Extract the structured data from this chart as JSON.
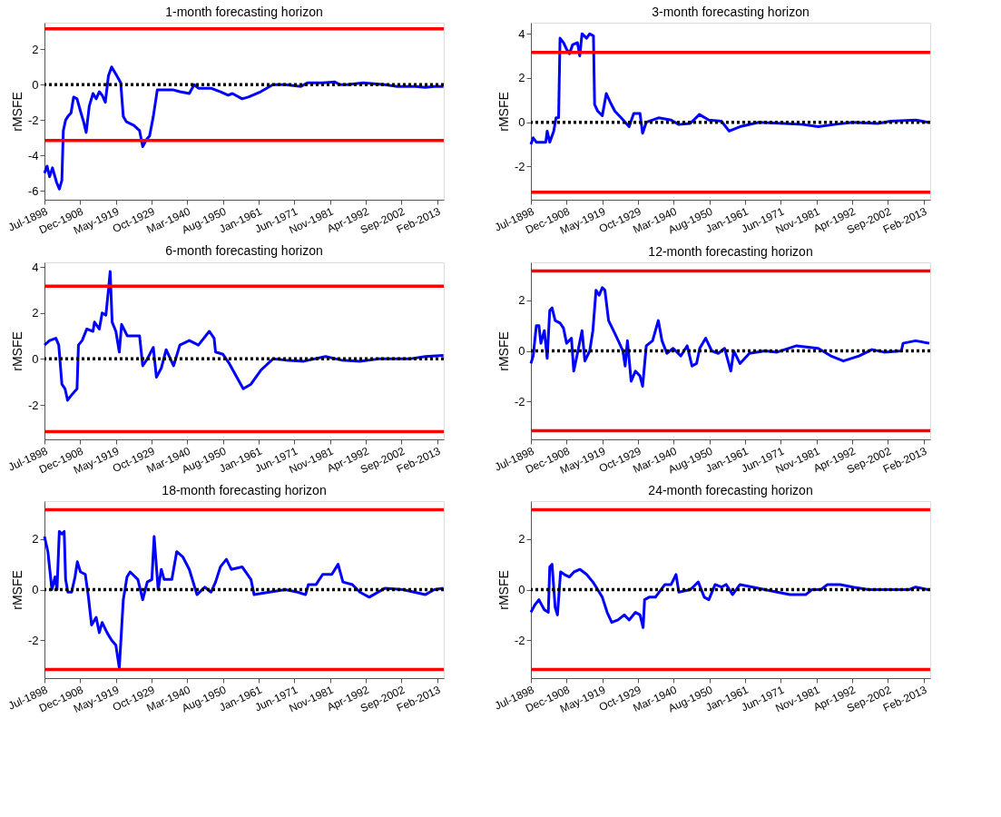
{
  "chart_data": [
    {
      "type": "line",
      "title": "1-month forecasting horizon",
      "ylabel": "rMSFE",
      "grid": false,
      "ylim": [
        -6.5,
        3.5
      ],
      "yticks": [
        -6,
        -4,
        -2,
        0,
        2
      ],
      "xlim": [
        "1898-07",
        "2015-01"
      ],
      "xticks": [
        {
          "value": "1898-07",
          "label": "Jul-1898"
        },
        {
          "value": "1908-12",
          "label": "Dec-1908"
        },
        {
          "value": "1919-05",
          "label": "May-1919"
        },
        {
          "value": "1929-10",
          "label": "Oct-1929"
        },
        {
          "value": "1940-03",
          "label": "Mar-1940"
        },
        {
          "value": "1950-08",
          "label": "Aug-1950"
        },
        {
          "value": "1961-01",
          "label": "Jan-1961"
        },
        {
          "value": "1971-06",
          "label": "Jun-1971"
        },
        {
          "value": "1981-11",
          "label": "Nov-1981"
        },
        {
          "value": "1992-04",
          "label": "Apr-1992"
        },
        {
          "value": "2002-09",
          "label": "Sep-2002"
        },
        {
          "value": "2013-02",
          "label": "Feb-2013"
        }
      ],
      "ref_lines": [
        {
          "axis": "y",
          "value": 3.16,
          "color": "#ff0000",
          "line_style": "solid"
        },
        {
          "axis": "y",
          "value": -3.16,
          "color": "#ff0000",
          "line_style": "solid"
        },
        {
          "axis": "y",
          "value": 0,
          "color": "#000000",
          "line_style": "dotted"
        }
      ],
      "x": [
        "1898-07",
        "1899-04",
        "1900-01",
        "1900-11",
        "1902-01",
        "1902-11",
        "1903-08",
        "1904-01",
        "1904-09",
        "1905-05",
        "1906-04",
        "1907-01",
        "1908-01",
        "1909-01",
        "1909-12",
        "1910-09",
        "1911-08",
        "1912-09",
        "1913-08",
        "1914-07",
        "1915-05",
        "1916-04",
        "1917-03",
        "1918-02",
        "1919-01",
        "1919-12",
        "1920-10",
        "1921-07",
        "1922-06",
        "1923-07",
        "1924-08",
        "1926-04",
        "1927-03",
        "1928-04",
        "1929-03",
        "1930-04",
        "1931-06",
        "1933-06",
        "1936-03",
        "1938-01",
        "1940-10",
        "1942-03",
        "1943-06",
        "1947-02",
        "1949-11",
        "1952-02",
        "1953-05",
        "1956-03",
        "1958-01",
        "1961-08",
        "1965-03",
        "1968-10",
        "1973-05",
        "1975-03",
        "1979-09",
        "1983-04",
        "1984-09",
        "1986-12",
        "1991-07",
        "1997-10",
        "2001-06",
        "2006-11",
        "2009-08",
        "2012-04",
        "2014-12"
      ],
      "series": [
        {
          "color": "#0000ff",
          "values": [
            -5.0,
            -4.6,
            -5.2,
            -4.7,
            -5.5,
            -5.9,
            -5.4,
            -2.6,
            -2.0,
            -1.8,
            -1.6,
            -0.7,
            -0.8,
            -1.5,
            -2.1,
            -2.7,
            -1.2,
            -0.5,
            -0.8,
            -0.4,
            -0.6,
            -1.0,
            0.5,
            1.0,
            0.7,
            0.4,
            0.1,
            -1.8,
            -2.1,
            -2.2,
            -2.3,
            -2.6,
            -3.5,
            -3.1,
            -2.9,
            -1.8,
            -0.3,
            -0.3,
            -0.3,
            -0.4,
            -0.5,
            0.0,
            -0.2,
            -0.2,
            -0.4,
            -0.6,
            -0.5,
            -0.8,
            -0.7,
            -0.4,
            0.0,
            0.0,
            -0.1,
            0.1,
            0.1,
            0.15,
            0.0,
            0.0,
            0.1,
            0.0,
            -0.1,
            -0.1,
            -0.15,
            -0.1,
            -0.1
          ]
        }
      ]
    },
    {
      "type": "line",
      "title": "3-month forecasting horizon",
      "ylabel": "rMSFE",
      "grid": false,
      "ylim": [
        -3.5,
        4.5
      ],
      "yticks": [
        -2,
        0,
        2,
        4
      ],
      "xlim": [
        "1898-07",
        "2015-01"
      ],
      "xticks": [
        {
          "value": "1898-07",
          "label": "Jul-1898"
        },
        {
          "value": "1908-12",
          "label": "Dec-1908"
        },
        {
          "value": "1919-05",
          "label": "May-1919"
        },
        {
          "value": "1929-10",
          "label": "Oct-1929"
        },
        {
          "value": "1940-03",
          "label": "Mar-1940"
        },
        {
          "value": "1950-08",
          "label": "Aug-1950"
        },
        {
          "value": "1961-01",
          "label": "Jan-1961"
        },
        {
          "value": "1971-06",
          "label": "Jun-1971"
        },
        {
          "value": "1981-11",
          "label": "Nov-1981"
        },
        {
          "value": "1992-04",
          "label": "Apr-1992"
        },
        {
          "value": "2002-09",
          "label": "Sep-2002"
        },
        {
          "value": "2013-02",
          "label": "Feb-2013"
        }
      ],
      "ref_lines": [
        {
          "axis": "y",
          "value": 3.16,
          "color": "#ff0000",
          "line_style": "solid"
        },
        {
          "axis": "y",
          "value": -3.16,
          "color": "#ff0000",
          "line_style": "solid"
        },
        {
          "axis": "y",
          "value": 0,
          "color": "#000000",
          "line_style": "dotted"
        }
      ],
      "x": [
        "1898-07",
        "1899-03",
        "1900-02",
        "1902-11",
        "1903-04",
        "1904-01",
        "1905-03",
        "1905-11",
        "1906-08",
        "1907-01",
        "1908-01",
        "1908-12",
        "1909-10",
        "1910-09",
        "1912-02",
        "1912-10",
        "1913-06",
        "1914-10",
        "1915-09",
        "1916-10",
        "1917-02",
        "1918-01",
        "1919-05",
        "1920-07",
        "1921-09",
        "1923-01",
        "1924-11",
        "1927-03",
        "1928-07",
        "1930-05",
        "1931-02",
        "1932-03",
        "1935-10",
        "1939-06",
        "1941-09",
        "1945-01",
        "1947-09",
        "1950-06",
        "1954-02",
        "1956-05",
        "1959-07",
        "1965-01",
        "1972-05",
        "1977-11",
        "1982-05",
        "1987-01",
        "1992-06",
        "1999-10",
        "2003-06",
        "2010-10",
        "2014-05"
      ],
      "series": [
        {
          "color": "#0000ff",
          "values": [
            -1.0,
            -0.7,
            -0.9,
            -0.9,
            -0.4,
            -0.9,
            -0.4,
            0.2,
            0.2,
            3.8,
            3.6,
            3.3,
            3.1,
            3.5,
            3.6,
            3.0,
            4.0,
            3.8,
            4.0,
            3.9,
            0.8,
            0.5,
            0.3,
            1.3,
            0.9,
            0.5,
            0.2,
            -0.2,
            0.4,
            0.4,
            -0.5,
            0.0,
            0.2,
            0.1,
            -0.1,
            -0.05,
            0.35,
            0.1,
            0.05,
            -0.4,
            -0.2,
            0.0,
            -0.05,
            -0.1,
            -0.2,
            -0.1,
            0.0,
            -0.05,
            0.05,
            0.1,
            0.0
          ]
        }
      ]
    },
    {
      "type": "line",
      "title": "6-month forecasting horizon",
      "ylabel": "rMSFE",
      "grid": false,
      "ylim": [
        -3.5,
        4.2
      ],
      "yticks": [
        -2,
        0,
        2,
        4
      ],
      "xlim": [
        "1898-07",
        "2015-01"
      ],
      "xticks": [
        {
          "value": "1898-07",
          "label": "Jul-1898"
        },
        {
          "value": "1908-12",
          "label": "Dec-1908"
        },
        {
          "value": "1919-05",
          "label": "May-1919"
        },
        {
          "value": "1929-10",
          "label": "Oct-1929"
        },
        {
          "value": "1940-03",
          "label": "Mar-1940"
        },
        {
          "value": "1950-08",
          "label": "Aug-1950"
        },
        {
          "value": "1961-01",
          "label": "Jan-1961"
        },
        {
          "value": "1971-06",
          "label": "Jun-1971"
        },
        {
          "value": "1981-11",
          "label": "Nov-1981"
        },
        {
          "value": "1992-04",
          "label": "Apr-1992"
        },
        {
          "value": "2002-09",
          "label": "Sep-2002"
        },
        {
          "value": "2013-02",
          "label": "Feb-2013"
        }
      ],
      "ref_lines": [
        {
          "axis": "y",
          "value": 3.16,
          "color": "#ff0000",
          "line_style": "solid"
        },
        {
          "axis": "y",
          "value": -3.16,
          "color": "#ff0000",
          "line_style": "solid"
        },
        {
          "axis": "y",
          "value": 0,
          "color": "#000000",
          "line_style": "dotted"
        }
      ],
      "x": [
        "1898-07",
        "1900-01",
        "1901-11",
        "1902-09",
        "1903-08",
        "1904-07",
        "1905-04",
        "1906-04",
        "1908-01",
        "1908-06",
        "1909-07",
        "1910-11",
        "1912-09",
        "1913-02",
        "1914-07",
        "1915-05",
        "1916-06",
        "1917-03",
        "1917-09",
        "1918-04",
        "1919-05",
        "1920-05",
        "1921-01",
        "1922-09",
        "1924-06",
        "1926-04",
        "1927-03",
        "1928-07",
        "1930-04",
        "1931-03",
        "1932-08",
        "1934-01",
        "1936-03",
        "1938-01",
        "1940-10",
        "1943-06",
        "1946-08",
        "1948-01",
        "1948-06",
        "1950-08",
        "1952-06",
        "1954-04",
        "1956-07",
        "1958-10",
        "1961-08",
        "1965-03",
        "1968-10",
        "1974-03",
        "1980-07",
        "1985-02",
        "1990-07",
        "1996-01",
        "2005-01",
        "2009-08",
        "2014-12"
      ],
      "series": [
        {
          "color": "#0000ff",
          "values": [
            0.6,
            0.8,
            0.9,
            0.6,
            -1.1,
            -1.3,
            -1.8,
            -1.6,
            -1.3,
            0.6,
            0.8,
            1.3,
            1.2,
            1.6,
            1.3,
            2.0,
            1.9,
            3.0,
            3.8,
            1.6,
            1.2,
            0.3,
            1.5,
            1.0,
            1.0,
            1.0,
            -0.3,
            0.0,
            0.5,
            -0.8,
            -0.4,
            0.4,
            -0.3,
            0.6,
            0.8,
            0.6,
            1.2,
            0.9,
            0.3,
            0.2,
            -0.2,
            -0.7,
            -1.3,
            -1.1,
            -0.5,
            0.0,
            -0.05,
            -0.1,
            0.1,
            -0.05,
            -0.1,
            0.0,
            0.0,
            0.1,
            0.15
          ]
        }
      ]
    },
    {
      "type": "line",
      "title": "12-month forecasting horizon",
      "ylabel": "rMSFE",
      "grid": false,
      "ylim": [
        -3.5,
        3.5
      ],
      "yticks": [
        -2,
        0,
        2
      ],
      "xlim": [
        "1898-07",
        "2015-01"
      ],
      "xticks": [
        {
          "value": "1898-07",
          "label": "Jul-1898"
        },
        {
          "value": "1908-12",
          "label": "Dec-1908"
        },
        {
          "value": "1919-05",
          "label": "May-1919"
        },
        {
          "value": "1929-10",
          "label": "Oct-1929"
        },
        {
          "value": "1940-03",
          "label": "Mar-1940"
        },
        {
          "value": "1950-08",
          "label": "Aug-1950"
        },
        {
          "value": "1961-01",
          "label": "Jan-1961"
        },
        {
          "value": "1971-06",
          "label": "Jun-1971"
        },
        {
          "value": "1981-11",
          "label": "Nov-1981"
        },
        {
          "value": "1992-04",
          "label": "Apr-1992"
        },
        {
          "value": "2002-09",
          "label": "Sep-2002"
        },
        {
          "value": "2013-02",
          "label": "Feb-2013"
        }
      ],
      "ref_lines": [
        {
          "axis": "y",
          "value": 3.16,
          "color": "#ff0000",
          "line_style": "solid"
        },
        {
          "axis": "y",
          "value": -3.16,
          "color": "#ff0000",
          "line_style": "solid"
        },
        {
          "axis": "y",
          "value": 0,
          "color": "#000000",
          "line_style": "dotted"
        }
      ],
      "x": [
        "1898-07",
        "1899-03",
        "1900-02",
        "1900-11",
        "1901-06",
        "1902-06",
        "1903-04",
        "1904-01",
        "1904-09",
        "1905-08",
        "1907-01",
        "1908-01",
        "1908-12",
        "1910-05",
        "1911-01",
        "1912-02",
        "1913-06",
        "1914-04",
        "1915-09",
        "1916-08",
        "1917-07",
        "1918-06",
        "1919-05",
        "1920-02",
        "1921-03",
        "1922-08",
        "1924-01",
        "1925-05",
        "1926-01",
        "1926-09",
        "1927-10",
        "1929-01",
        "1930-05",
        "1931-02",
        "1932-03",
        "1934-01",
        "1935-09",
        "1936-10",
        "1938-03",
        "1940-01",
        "1942-04",
        "1944-02",
        "1945-07",
        "1946-11",
        "1947-10",
        "1949-07",
        "1951-04",
        "1953-03",
        "1955-01",
        "1956-11",
        "1957-09",
        "1959-07",
        "1962-04",
        "1966-10",
        "1970-05",
        "1976-01",
        "1982-05",
        "1986-01",
        "1989-09",
        "1994-04",
        "1998-01",
        "2001-08",
        "2006-08",
        "2007-02",
        "2010-10",
        "2014-10"
      ],
      "series": [
        {
          "color": "#0000ff",
          "values": [
            -0.5,
            -0.2,
            1.0,
            1.0,
            0.3,
            0.8,
            -0.3,
            1.6,
            1.7,
            1.2,
            1.1,
            0.9,
            0.3,
            0.5,
            -0.8,
            -0.1,
            0.8,
            -0.4,
            0.0,
            0.8,
            2.4,
            2.2,
            2.5,
            2.4,
            1.2,
            0.8,
            0.4,
            0.0,
            -0.6,
            0.4,
            -1.2,
            -0.8,
            -1.0,
            -1.4,
            0.2,
            0.4,
            1.2,
            0.4,
            -0.1,
            0.1,
            -0.2,
            0.2,
            -0.6,
            -0.5,
            0.1,
            0.5,
            0.0,
            -0.1,
            0.1,
            -0.8,
            0.0,
            -0.5,
            -0.1,
            0.0,
            -0.05,
            0.2,
            0.1,
            -0.2,
            -0.4,
            -0.2,
            0.05,
            -0.05,
            0.0,
            0.3,
            0.4,
            0.3
          ]
        }
      ]
    },
    {
      "type": "line",
      "title": "18-month forecasting horizon",
      "ylabel": "rMSFE",
      "grid": false,
      "ylim": [
        -3.5,
        3.5
      ],
      "yticks": [
        -2,
        0,
        2
      ],
      "xlim": [
        "1898-07",
        "2015-01"
      ],
      "xticks": [
        {
          "value": "1898-07",
          "label": "Jul-1898"
        },
        {
          "value": "1908-12",
          "label": "Dec-1908"
        },
        {
          "value": "1919-05",
          "label": "May-1919"
        },
        {
          "value": "1929-10",
          "label": "Oct-1929"
        },
        {
          "value": "1940-03",
          "label": "Mar-1940"
        },
        {
          "value": "1950-08",
          "label": "Aug-1950"
        },
        {
          "value": "1961-01",
          "label": "Jan-1961"
        },
        {
          "value": "1971-06",
          "label": "Jun-1971"
        },
        {
          "value": "1981-11",
          "label": "Nov-1981"
        },
        {
          "value": "1992-04",
          "label": "Apr-1992"
        },
        {
          "value": "2002-09",
          "label": "Sep-2002"
        },
        {
          "value": "2013-02",
          "label": "Feb-2013"
        }
      ],
      "ref_lines": [
        {
          "axis": "y",
          "value": 3.16,
          "color": "#ff0000",
          "line_style": "solid"
        },
        {
          "axis": "y",
          "value": -3.16,
          "color": "#ff0000",
          "line_style": "solid"
        },
        {
          "axis": "y",
          "value": 0,
          "color": "#000000",
          "line_style": "dotted"
        }
      ],
      "x": [
        "1898-07",
        "1899-07",
        "1900-09",
        "1901-08",
        "1902-03",
        "1902-11",
        "1903-08",
        "1904-04",
        "1904-09",
        "1905-05",
        "1906-06",
        "1907-06",
        "1908-02",
        "1909-01",
        "1910-06",
        "1911-05",
        "1912-04",
        "1913-08",
        "1914-07",
        "1915-05",
        "1916-10",
        "1918-02",
        "1919-05",
        "1920-05",
        "1921-07",
        "1922-08",
        "1923-07",
        "1925-10",
        "1927-03",
        "1928-07",
        "1929-11",
        "1930-07",
        "1931-09",
        "1932-08",
        "1933-06",
        "1935-09",
        "1937-02",
        "1938-11",
        "1940-10",
        "1943-01",
        "1945-04",
        "1947-02",
        "1948-06",
        "1949-11",
        "1951-08",
        "1953-01",
        "1956-03",
        "1958-10",
        "1959-09",
        "1964-03",
        "1968-10",
        "1972-05",
        "1974-09",
        "1975-07",
        "1977-10",
        "1979-09",
        "1982-05",
        "1984-03",
        "1985-08",
        "1988-05",
        "1990-07",
        "1993-04",
        "1997-10",
        "2003-02",
        "2009-08",
        "2012-04",
        "2014-12"
      ],
      "series": [
        {
          "color": "#0000ff",
          "values": [
            2.1,
            1.5,
            0.0,
            0.5,
            0.0,
            2.3,
            2.2,
            2.3,
            0.4,
            -0.1,
            -0.1,
            0.5,
            1.1,
            0.7,
            0.6,
            -0.3,
            -1.4,
            -1.1,
            -1.7,
            -1.3,
            -1.7,
            -2.0,
            -2.2,
            -3.1,
            -0.4,
            0.5,
            0.7,
            0.4,
            -0.4,
            0.3,
            0.4,
            2.1,
            0.0,
            0.8,
            0.4,
            0.4,
            1.5,
            1.3,
            0.8,
            -0.2,
            0.1,
            -0.1,
            0.3,
            0.9,
            1.2,
            0.8,
            0.9,
            0.4,
            -0.2,
            -0.1,
            0.0,
            -0.1,
            -0.2,
            0.2,
            0.2,
            0.6,
            0.6,
            1.0,
            0.3,
            0.2,
            -0.1,
            -0.3,
            0.05,
            0.0,
            -0.2,
            0.0,
            0.05
          ]
        }
      ]
    },
    {
      "type": "line",
      "title": "24-month forecasting horizon",
      "ylabel": "rMSFE",
      "grid": false,
      "ylim": [
        -3.5,
        3.5
      ],
      "yticks": [
        -2,
        0,
        2
      ],
      "xlim": [
        "1898-07",
        "2015-01"
      ],
      "xticks": [
        {
          "value": "1898-07",
          "label": "Jul-1898"
        },
        {
          "value": "1908-12",
          "label": "Dec-1908"
        },
        {
          "value": "1919-05",
          "label": "May-1919"
        },
        {
          "value": "1929-10",
          "label": "Oct-1929"
        },
        {
          "value": "1940-03",
          "label": "Mar-1940"
        },
        {
          "value": "1950-08",
          "label": "Aug-1950"
        },
        {
          "value": "1961-01",
          "label": "Jan-1961"
        },
        {
          "value": "1971-06",
          "label": "Jun-1971"
        },
        {
          "value": "1981-11",
          "label": "Nov-1981"
        },
        {
          "value": "1992-04",
          "label": "Apr-1992"
        },
        {
          "value": "2002-09",
          "label": "Sep-2002"
        },
        {
          "value": "2013-02",
          "label": "Feb-2013"
        }
      ],
      "ref_lines": [
        {
          "axis": "y",
          "value": 3.16,
          "color": "#ff0000",
          "line_style": "solid"
        },
        {
          "axis": "y",
          "value": -3.16,
          "color": "#ff0000",
          "line_style": "solid"
        },
        {
          "axis": "y",
          "value": 0,
          "color": "#000000",
          "line_style": "dotted"
        }
      ],
      "x": [
        "1898-07",
        "1899-09",
        "1900-11",
        "1902-06",
        "1903-08",
        "1904-01",
        "1904-09",
        "1905-08",
        "1906-04",
        "1907-03",
        "1908-04",
        "1909-10",
        "1911-02",
        "1912-11",
        "1914-10",
        "1916-08",
        "1918-01",
        "1919-05",
        "1920-10",
        "1922-02",
        "1923-12",
        "1925-10",
        "1927-03",
        "1929-01",
        "1930-05",
        "1931-04",
        "1931-09",
        "1933-01",
        "1934-11",
        "1937-08",
        "1939-06",
        "1940-11",
        "1941-09",
        "1945-01",
        "1947-05",
        "1949-02",
        "1950-06",
        "1952-04",
        "1954-02",
        "1955-07",
        "1957-05",
        "1959-07",
        "1963-03",
        "1966-10",
        "1970-05",
        "1974-02",
        "1978-09",
        "1980-07",
        "1983-03",
        "1985-01",
        "1988-10",
        "1992-06",
        "1997-01",
        "2002-07",
        "2008-11",
        "2010-10",
        "2014-05"
      ],
      "series": [
        {
          "color": "#0000ff",
          "values": [
            -0.9,
            -0.6,
            -0.4,
            -0.8,
            -0.9,
            0.9,
            1.0,
            -0.7,
            -1.0,
            0.7,
            0.6,
            0.5,
            0.7,
            0.8,
            0.6,
            0.3,
            0.0,
            -0.3,
            -0.9,
            -1.3,
            -1.2,
            -1.0,
            -1.2,
            -0.9,
            -1.0,
            -1.5,
            -0.4,
            -0.3,
            -0.3,
            0.2,
            0.2,
            0.6,
            -0.1,
            0.0,
            0.3,
            -0.3,
            -0.4,
            0.2,
            0.1,
            0.2,
            -0.2,
            0.2,
            0.1,
            0.0,
            -0.1,
            -0.2,
            -0.2,
            0.0,
            0.0,
            0.2,
            0.2,
            0.1,
            0.0,
            0.0,
            0.0,
            0.1,
            0.0
          ]
        }
      ]
    }
  ]
}
